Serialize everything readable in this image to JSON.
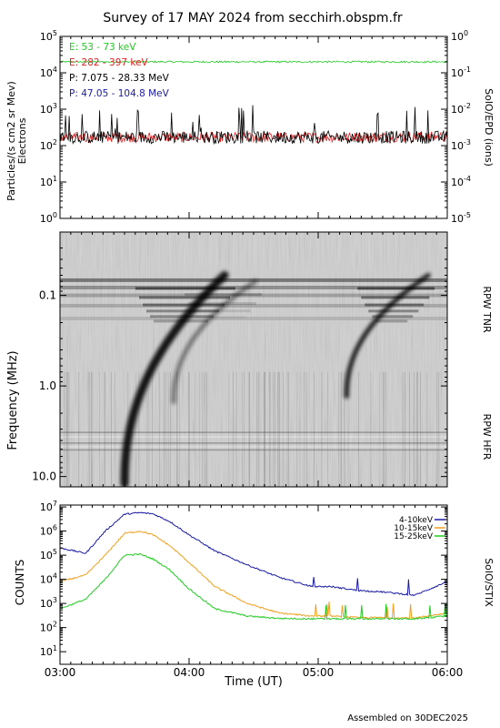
{
  "title": "Survey of 17 MAY 2024 from secchirh.obspm.fr",
  "footer": "Assembled on 30DEC2025",
  "x_axis": {
    "label": "Time (UT)",
    "ticks": [
      "03:00",
      "04:00",
      "05:00",
      "06:00"
    ],
    "range_hours": [
      3.0,
      6.0
    ]
  },
  "panels": {
    "particles": {
      "ylabel_line1": "Particles/(s cm2 sr Mev)",
      "ylabel_line2": "Electrons",
      "right_label": "SolO/EPD (ions)",
      "left_ticks": [
        "10^0",
        "10^1",
        "10^2",
        "10^3",
        "10^4",
        "10^5"
      ],
      "right_ticks": [
        "10^-5",
        "10^-4",
        "10^-3",
        "10^-2",
        "10^-1",
        "10^0"
      ],
      "legend": [
        {
          "text": "E: 53 - 73 keV",
          "color": "#22cc22"
        },
        {
          "text": "E: 282 - 397 keV",
          "color": "#dd2222"
        },
        {
          "text": "P: 7.075 - 28.33 MeV",
          "color": "#000000"
        },
        {
          "text": "P: 47.05 - 104.8 MeV",
          "color": "#1a1aa6"
        }
      ]
    },
    "spectrogram": {
      "ylabel": "Frequency (MHz)",
      "ticks": [
        "0.1",
        "1.0",
        "10.0"
      ],
      "label_tnr": "RPW TNR",
      "label_hfr": "RPW HFR"
    },
    "stix": {
      "ylabel": "COUNTS",
      "right_label": "SolO/STIX",
      "ticks": [
        "10^1",
        "10^2",
        "10^3",
        "10^4",
        "10^5",
        "10^6",
        "10^7"
      ],
      "legend": [
        {
          "text": "4-10keV",
          "color": "#1a1aa6"
        },
        {
          "text": "10-15keV",
          "color": "#f0a020"
        },
        {
          "text": "15-25keV",
          "color": "#22cc22"
        }
      ]
    }
  },
  "chart_data": [
    {
      "type": "line",
      "panel": "SolO/EPD",
      "y_scale": "log",
      "ylim_left": [
        1,
        100000
      ],
      "ylim_right": [
        1e-05,
        1
      ],
      "x": [
        3.0,
        3.5,
        4.0,
        4.5,
        5.0,
        5.5,
        6.0
      ],
      "series": [
        {
          "name": "E: 53 - 73 keV",
          "axis": "left",
          "values": [
            20000,
            20000,
            20000,
            20000,
            20000,
            20000,
            20000
          ]
        },
        {
          "name": "E: 282 - 397 keV",
          "axis": "left",
          "values": [
            170,
            170,
            170,
            170,
            170,
            170,
            180
          ]
        },
        {
          "name": "P: 7.075 - 28.33 MeV",
          "axis": "right",
          "values": [
            0.0017,
            0.0017,
            0.0017,
            0.0017,
            0.0017,
            0.0017,
            0.0017
          ]
        }
      ]
    },
    {
      "type": "heatmap",
      "panel": "RPW TNR/HFR",
      "y_scale": "log",
      "ylim": [
        13.0,
        0.02
      ],
      "x_range": [
        3.0,
        6.0
      ],
      "features": [
        {
          "kind": "type III burst",
          "start_time": 3.5,
          "freq_range_mhz": [
            0.06,
            12
          ]
        },
        {
          "kind": "type III burst",
          "start_time": 3.88,
          "freq_range_mhz": [
            0.07,
            1.5
          ]
        },
        {
          "kind": "type III burst",
          "start_time": 5.22,
          "freq_range_mhz": [
            0.06,
            1.3
          ]
        }
      ]
    },
    {
      "type": "line",
      "panel": "SolO/STIX",
      "y_scale": "log",
      "ylim": [
        3,
        12000000
      ],
      "x": [
        3.0,
        3.2,
        3.35,
        3.5,
        3.62,
        3.72,
        3.85,
        4.0,
        4.2,
        4.45,
        4.7,
        4.95,
        5.1,
        5.3,
        5.5,
        5.75,
        6.0
      ],
      "series": [
        {
          "name": "4-10keV",
          "values": [
            200000,
            120000,
            1000000,
            5000000,
            5800000,
            5200000,
            2500000,
            700000,
            150000,
            40000,
            12000,
            5000,
            5000,
            3500,
            3000,
            2200,
            8000
          ]
        },
        {
          "name": "10-15keV",
          "values": [
            8000,
            15000,
            100000,
            800000,
            1000000,
            700000,
            250000,
            50000,
            5000,
            1000,
            400,
            300,
            300,
            260,
            260,
            250,
            400
          ]
        },
        {
          "name": "15-25keV",
          "values": [
            600,
            1500,
            10000,
            100000,
            110000,
            70000,
            25000,
            4000,
            600,
            300,
            240,
            230,
            230,
            230,
            230,
            230,
            300
          ]
        }
      ]
    }
  ]
}
